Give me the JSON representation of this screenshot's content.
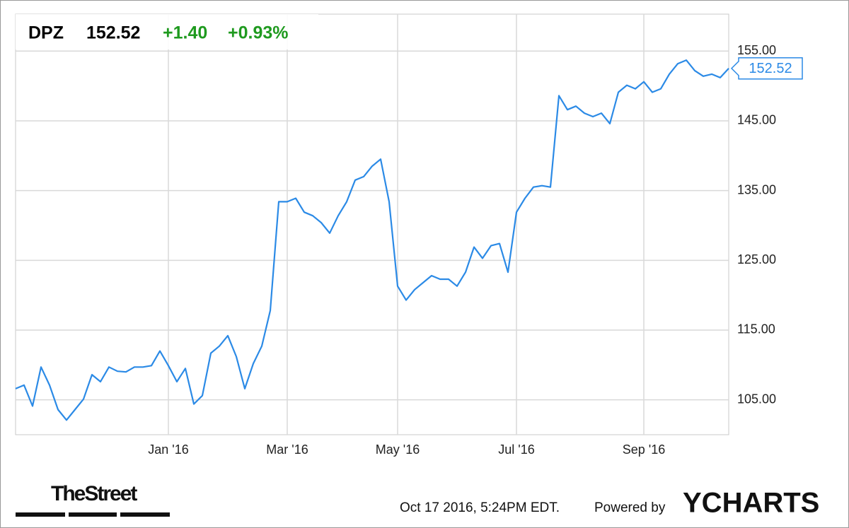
{
  "chart_data": {
    "type": "line",
    "quote": {
      "symbol": "DPZ",
      "price": "152.52",
      "change": "+1.40",
      "change_percent": "+0.93%"
    },
    "categories": [
      null,
      null,
      null,
      null,
      null,
      null,
      null,
      null,
      null,
      null,
      null,
      null,
      null,
      null,
      null,
      null,
      null,
      null,
      "Jan '16",
      null,
      null,
      null,
      null,
      null,
      null,
      null,
      null,
      null,
      null,
      null,
      null,
      null,
      "Mar '16",
      null,
      null,
      null,
      null,
      null,
      null,
      null,
      null,
      null,
      null,
      null,
      null,
      "May '16",
      null,
      null,
      null,
      null,
      null,
      null,
      null,
      null,
      null,
      null,
      null,
      null,
      null,
      "Jul '16",
      null,
      null,
      null,
      null,
      null,
      null,
      null,
      null,
      null,
      null,
      null,
      null,
      null,
      null,
      "Sep '16",
      null,
      null,
      null,
      null,
      null,
      null,
      null,
      null,
      null,
      null
    ],
    "series": [
      {
        "name": "DPZ",
        "color": "#2b8ae6",
        "values": [
          106.6,
          107.1,
          104.1,
          109.7,
          107.1,
          103.6,
          102.1,
          103.6,
          105.1,
          108.6,
          107.6,
          109.7,
          109.1,
          109.0,
          109.7,
          109.7,
          109.9,
          112.0,
          109.9,
          107.6,
          109.5,
          104.4,
          105.6,
          111.7,
          112.7,
          114.2,
          111.2,
          106.6,
          110.2,
          112.7,
          117.8,
          133.4,
          133.4,
          133.9,
          131.9,
          131.4,
          130.4,
          128.9,
          131.4,
          133.4,
          136.5,
          137.0,
          138.5,
          139.5,
          133.4,
          121.3,
          119.3,
          120.8,
          121.8,
          122.8,
          122.3,
          122.3,
          121.3,
          123.3,
          126.9,
          125.3,
          127.1,
          127.4,
          123.3,
          131.9,
          133.9,
          135.5,
          135.7,
          135.5,
          148.6,
          146.6,
          147.1,
          146.1,
          145.6,
          146.1,
          144.6,
          149.1,
          150.1,
          149.6,
          150.6,
          149.1,
          149.6,
          151.7,
          153.2,
          153.7,
          152.2,
          151.4,
          151.7,
          151.2,
          152.52
        ]
      }
    ],
    "ylim": [
      100.0,
      160.3
    ],
    "yticks": [
      {
        "value": 105,
        "label": "105.00"
      },
      {
        "value": 115,
        "label": "115.00"
      },
      {
        "value": 125,
        "label": "125.00"
      },
      {
        "value": 135,
        "label": "135.00"
      },
      {
        "value": 145,
        "label": "145.00"
      },
      {
        "value": 155,
        "label": "155.00"
      }
    ],
    "grid": true,
    "footer": {
      "source_logo": "TheStreet",
      "timestamp": "Oct 17 2016, 5:24PM EDT.",
      "powered_by": "Powered by",
      "brand": "YCHARTS"
    }
  }
}
